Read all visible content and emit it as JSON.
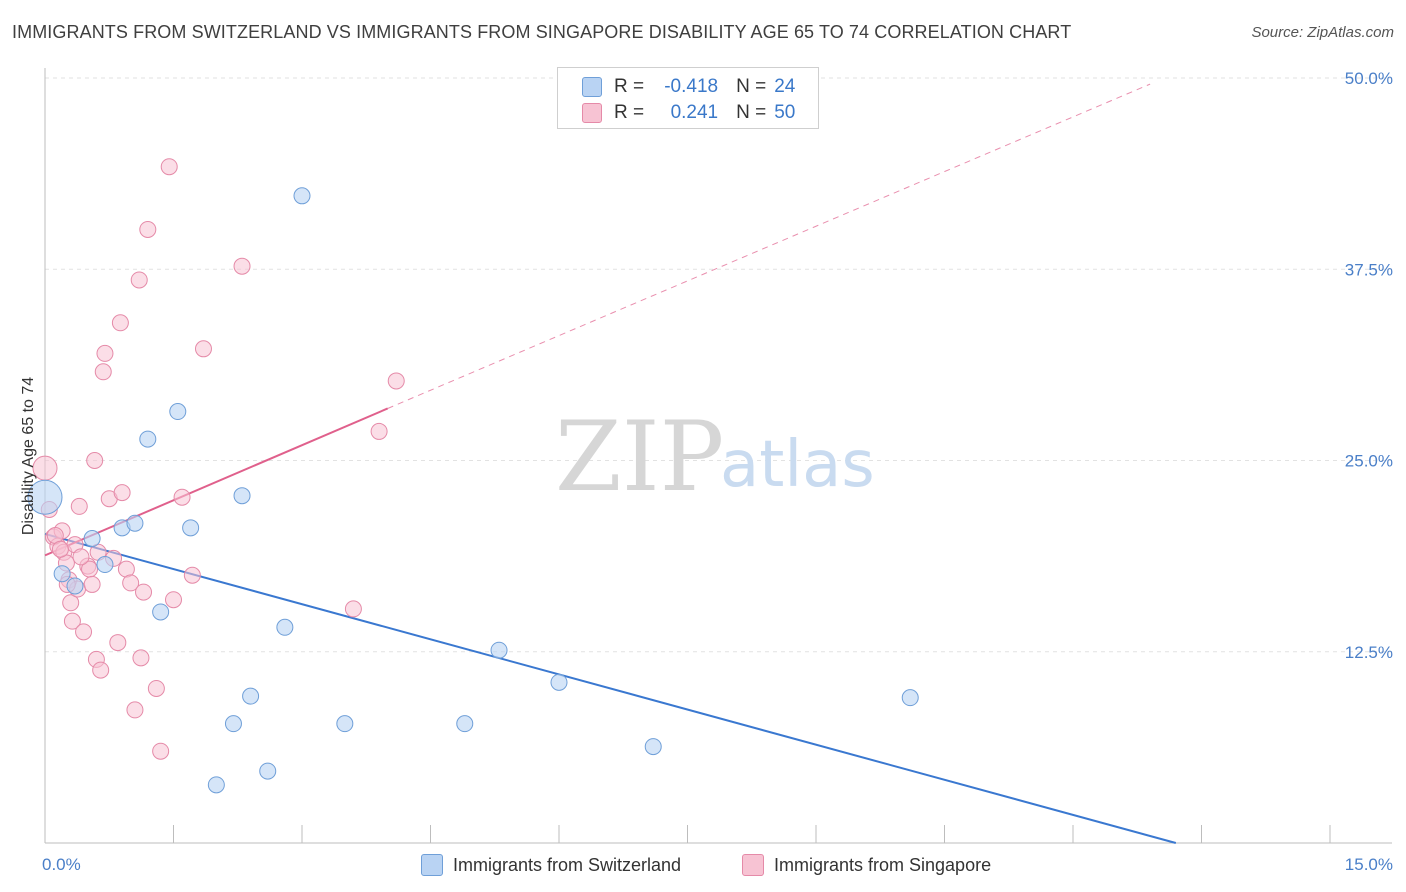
{
  "title": "IMMIGRANTS FROM SWITZERLAND VS IMMIGRANTS FROM SINGAPORE DISABILITY AGE 65 TO 74 CORRELATION CHART",
  "source": "Source: ZipAtlas.com",
  "watermark": {
    "zip": "ZIP",
    "atlas": "atlas"
  },
  "legend_stats": [
    {
      "r_label": "R =",
      "r_value": "-0.418",
      "n_label": "N =",
      "n_value": "24"
    },
    {
      "r_label": "R =",
      "r_value": "0.241",
      "n_label": "N =",
      "n_value": "50"
    }
  ],
  "colors": {
    "switzerland_fill": "#b9d3f3",
    "switzerland_stroke": "#6f9fd8",
    "switzerland_line": "#3a78d0",
    "singapore_fill": "#f7c3d3",
    "singapore_stroke": "#e58aa8",
    "singapore_line": "#e0608c",
    "grid": "#e2e2e2",
    "tick_text": "#4a7fc8"
  },
  "chart_data": {
    "type": "scatter",
    "title": "IMMIGRANTS FROM SWITZERLAND VS IMMIGRANTS FROM SINGAPORE DISABILITY AGE 65 TO 74 CORRELATION CHART",
    "xlabel": "",
    "ylabel": "Disability Age 65 to 74",
    "xlim": [
      0,
      15
    ],
    "ylim": [
      0,
      50
    ],
    "x_tick_labels": [
      {
        "value": 0,
        "label": "0.0%"
      },
      {
        "value": 15,
        "label": "15.0%"
      }
    ],
    "y_tick_labels": [
      {
        "value": 12.5,
        "label": "12.5%"
      },
      {
        "value": 25,
        "label": "25.0%"
      },
      {
        "value": 37.5,
        "label": "37.5%"
      },
      {
        "value": 50,
        "label": "50.0%"
      }
    ],
    "grid": true,
    "legend_position": "bottom",
    "series": [
      {
        "name": "Immigrants from Switzerland",
        "r": -0.418,
        "n": 24,
        "points": [
          {
            "x": 0.0,
            "y": 22.6,
            "size": "large"
          },
          {
            "x": 0.2,
            "y": 17.6
          },
          {
            "x": 0.35,
            "y": 16.8
          },
          {
            "x": 0.55,
            "y": 19.9
          },
          {
            "x": 0.7,
            "y": 18.2
          },
          {
            "x": 0.9,
            "y": 20.6
          },
          {
            "x": 1.05,
            "y": 20.9
          },
          {
            "x": 1.2,
            "y": 26.4
          },
          {
            "x": 1.35,
            "y": 15.1
          },
          {
            "x": 1.55,
            "y": 28.2
          },
          {
            "x": 1.7,
            "y": 20.6
          },
          {
            "x": 2.0,
            "y": 3.8
          },
          {
            "x": 2.2,
            "y": 7.8
          },
          {
            "x": 2.3,
            "y": 22.7
          },
          {
            "x": 2.4,
            "y": 9.6
          },
          {
            "x": 2.6,
            "y": 4.7
          },
          {
            "x": 2.8,
            "y": 14.1
          },
          {
            "x": 3.0,
            "y": 42.3
          },
          {
            "x": 3.5,
            "y": 7.8
          },
          {
            "x": 4.9,
            "y": 7.8
          },
          {
            "x": 5.3,
            "y": 12.6
          },
          {
            "x": 6.0,
            "y": 10.5
          },
          {
            "x": 7.1,
            "y": 6.3
          },
          {
            "x": 10.1,
            "y": 9.5
          }
        ],
        "trend": {
          "x": [
            0,
            13.2
          ],
          "y": [
            20.2,
            0
          ]
        }
      },
      {
        "name": "Immigrants from Singapore",
        "r": 0.241,
        "n": 50,
        "points": [
          {
            "x": 0.0,
            "y": 24.5,
            "size": "medium"
          },
          {
            "x": 0.05,
            "y": 21.8
          },
          {
            "x": 0.1,
            "y": 20.0
          },
          {
            "x": 0.15,
            "y": 19.4
          },
          {
            "x": 0.2,
            "y": 20.4
          },
          {
            "x": 0.22,
            "y": 19.0
          },
          {
            "x": 0.25,
            "y": 18.3
          },
          {
            "x": 0.28,
            "y": 17.2
          },
          {
            "x": 0.3,
            "y": 15.7
          },
          {
            "x": 0.32,
            "y": 14.5
          },
          {
            "x": 0.35,
            "y": 19.5
          },
          {
            "x": 0.38,
            "y": 16.6
          },
          {
            "x": 0.4,
            "y": 22.0
          },
          {
            "x": 0.45,
            "y": 13.8
          },
          {
            "x": 0.5,
            "y": 18.1
          },
          {
            "x": 0.52,
            "y": 17.9
          },
          {
            "x": 0.55,
            "y": 16.9
          },
          {
            "x": 0.58,
            "y": 25.0
          },
          {
            "x": 0.6,
            "y": 12.0
          },
          {
            "x": 0.62,
            "y": 19.0
          },
          {
            "x": 0.65,
            "y": 11.3
          },
          {
            "x": 0.68,
            "y": 30.8
          },
          {
            "x": 0.7,
            "y": 32.0
          },
          {
            "x": 0.75,
            "y": 22.5
          },
          {
            "x": 0.8,
            "y": 18.6
          },
          {
            "x": 0.85,
            "y": 13.1
          },
          {
            "x": 0.88,
            "y": 34.0
          },
          {
            "x": 0.9,
            "y": 22.9
          },
          {
            "x": 0.95,
            "y": 17.9
          },
          {
            "x": 1.0,
            "y": 17.0
          },
          {
            "x": 1.05,
            "y": 8.7
          },
          {
            "x": 1.1,
            "y": 36.8
          },
          {
            "x": 1.12,
            "y": 12.1
          },
          {
            "x": 1.15,
            "y": 16.4
          },
          {
            "x": 1.2,
            "y": 40.1
          },
          {
            "x": 1.3,
            "y": 10.1
          },
          {
            "x": 1.35,
            "y": 6.0
          },
          {
            "x": 1.45,
            "y": 44.2
          },
          {
            "x": 1.5,
            "y": 15.9
          },
          {
            "x": 1.6,
            "y": 22.6
          },
          {
            "x": 1.72,
            "y": 17.5
          },
          {
            "x": 1.85,
            "y": 32.3
          },
          {
            "x": 2.3,
            "y": 37.7
          },
          {
            "x": 3.6,
            "y": 15.3
          },
          {
            "x": 3.9,
            "y": 26.9
          },
          {
            "x": 4.1,
            "y": 30.2
          },
          {
            "x": 0.12,
            "y": 20.1
          },
          {
            "x": 0.18,
            "y": 19.2
          },
          {
            "x": 0.42,
            "y": 18.7
          },
          {
            "x": 0.26,
            "y": 16.9
          }
        ],
        "trend": {
          "x": [
            0,
            4.0
          ],
          "y": [
            18.8,
            28.4
          ]
        },
        "trend_extension": {
          "x": [
            4.0,
            12.9
          ],
          "y": [
            28.4,
            49.6
          ]
        }
      }
    ]
  }
}
